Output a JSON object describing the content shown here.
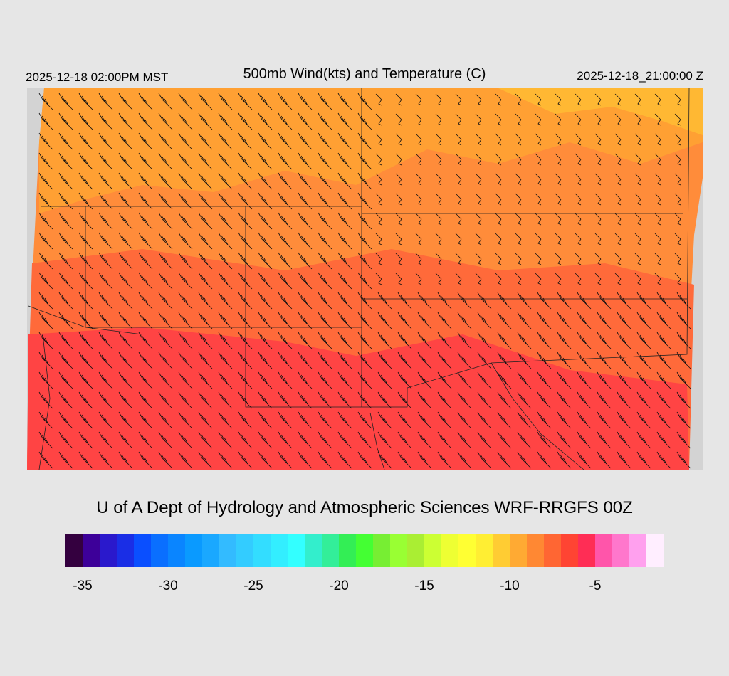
{
  "header": {
    "valid_local": "2025-12-18 02:00PM MST",
    "title": "500mb Wind(kts) and Temperature (C)",
    "valid_utc": "2025-12-18_21:00:00 Z"
  },
  "footer": "U of A Dept of Hydrology and Atmospheric Sciences WRF-RRGFS 00Z",
  "colorbar": {
    "xlim": [
      -36,
      -1
    ],
    "xticks": [
      -35,
      -30,
      -25,
      -20,
      -15,
      -10,
      -5
    ],
    "colors": [
      "#34003f",
      "#3d0099",
      "#2a19cc",
      "#1a2ee6",
      "#0a4fff",
      "#0a6fff",
      "#0a85ff",
      "#0a9aff",
      "#1aa8ff",
      "#33bbff",
      "#33ccff",
      "#33ddff",
      "#33eeff",
      "#33ffff",
      "#33eecc",
      "#33ee99",
      "#33ee55",
      "#44ff33",
      "#77ee33",
      "#99ff33",
      "#aaee33",
      "#ccff33",
      "#eeff33",
      "#ffff33",
      "#ffee33",
      "#ffcc33",
      "#ffaa33",
      "#ff8833",
      "#ff6633",
      "#ff4433",
      "#ff2d55",
      "#ff55aa",
      "#ff77cc",
      "#ffa0ee",
      "#ffeeff"
    ]
  }
}
